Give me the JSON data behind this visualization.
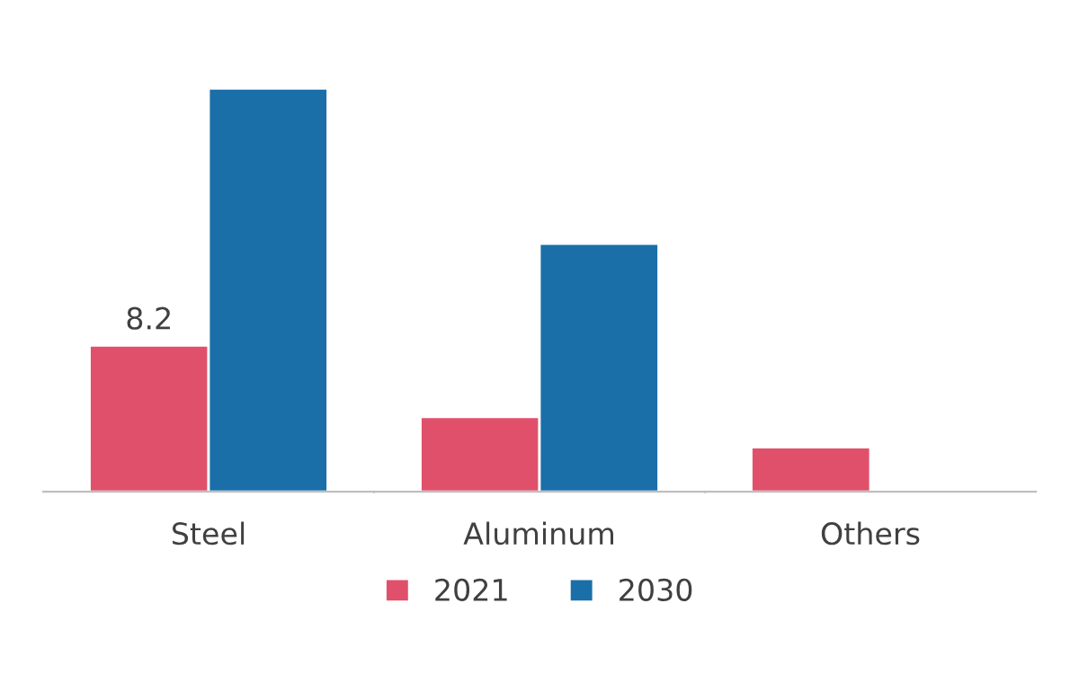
{
  "chart_data": {
    "type": "bar",
    "categories": [
      "Steel",
      "Aluminum",
      "Others"
    ],
    "series": [
      {
        "name": "2021",
        "color": "#e0506a",
        "values": [
          8.2,
          4.2,
          2.5
        ],
        "value_labels": [
          "8.2",
          null,
          null
        ]
      },
      {
        "name": "2030",
        "color": "#1a6fa8",
        "values": [
          22.6,
          13.9,
          null
        ]
      }
    ],
    "legend": "bottom",
    "grid": false
  }
}
